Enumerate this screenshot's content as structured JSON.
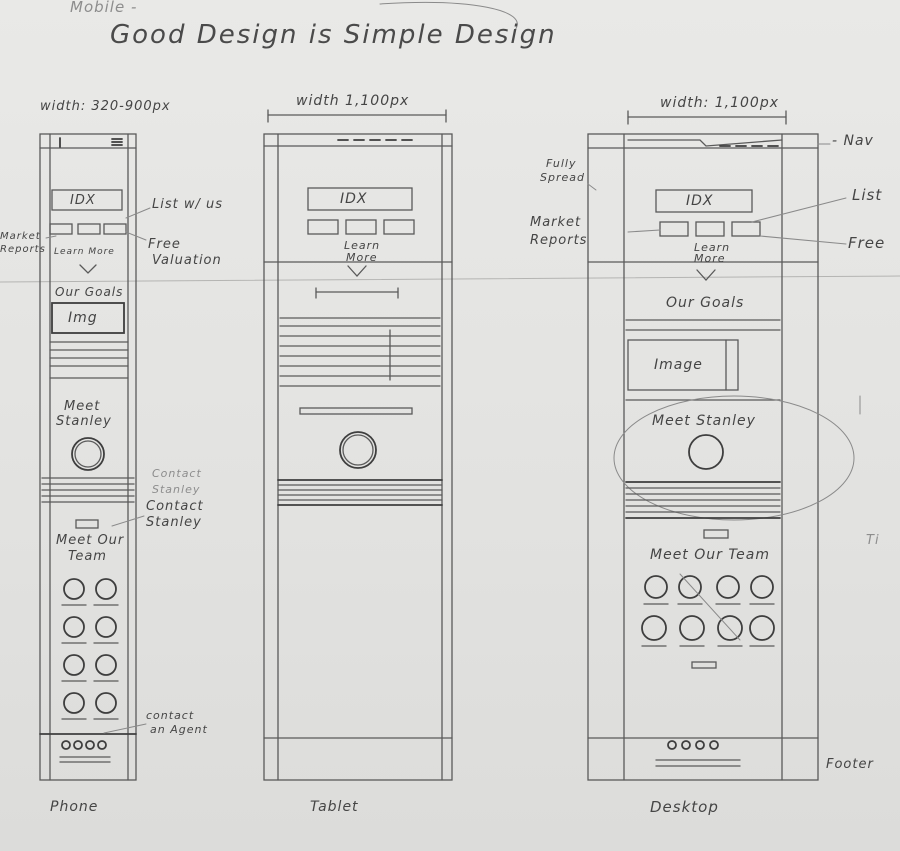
{
  "title": "Good Design is Simple Design",
  "top_partial": "Mobile -",
  "phone": {
    "width_label": "width: 320-900px",
    "idx": "IDX",
    "learn_more": "Learn More",
    "our_goals": "Our Goals",
    "img": "Img",
    "meet_stanley": [
      "Meet",
      "Stanley"
    ],
    "meet_our_team": [
      "Meet Our",
      "Team"
    ],
    "caption": "Phone"
  },
  "tablet": {
    "width_label": "width 1,100px",
    "idx": "IDX",
    "learn_more": [
      "Learn",
      "More"
    ],
    "caption": "Tablet"
  },
  "desktop": {
    "width_label": "width: 1,100px",
    "idx": "IDX",
    "learn_more": [
      "Learn",
      "More"
    ],
    "our_goals": "Our Goals",
    "image": "Image",
    "meet_stanley": "Meet Stanley",
    "meet_our_team": "Meet Our Team",
    "caption": "Desktop"
  },
  "annotations": {
    "list_w_us": "List w/ us",
    "market_reports": [
      "Market",
      "Reports"
    ],
    "free_valuation": [
      "Free",
      "Valuation"
    ],
    "contact_stanley_faded": [
      "Contact",
      "Stanley"
    ],
    "contact_stanley": [
      "Contact",
      "Stanley"
    ],
    "contact_an_agent": [
      "contact",
      "an Agent"
    ],
    "fully_spread": [
      "Fully",
      "Spread"
    ],
    "market_reports_desktop": [
      "Market",
      "Reports"
    ],
    "list": "List",
    "free": "Free",
    "nav": "- Nav",
    "footer": "Footer",
    "margin_ti": "Ti"
  }
}
